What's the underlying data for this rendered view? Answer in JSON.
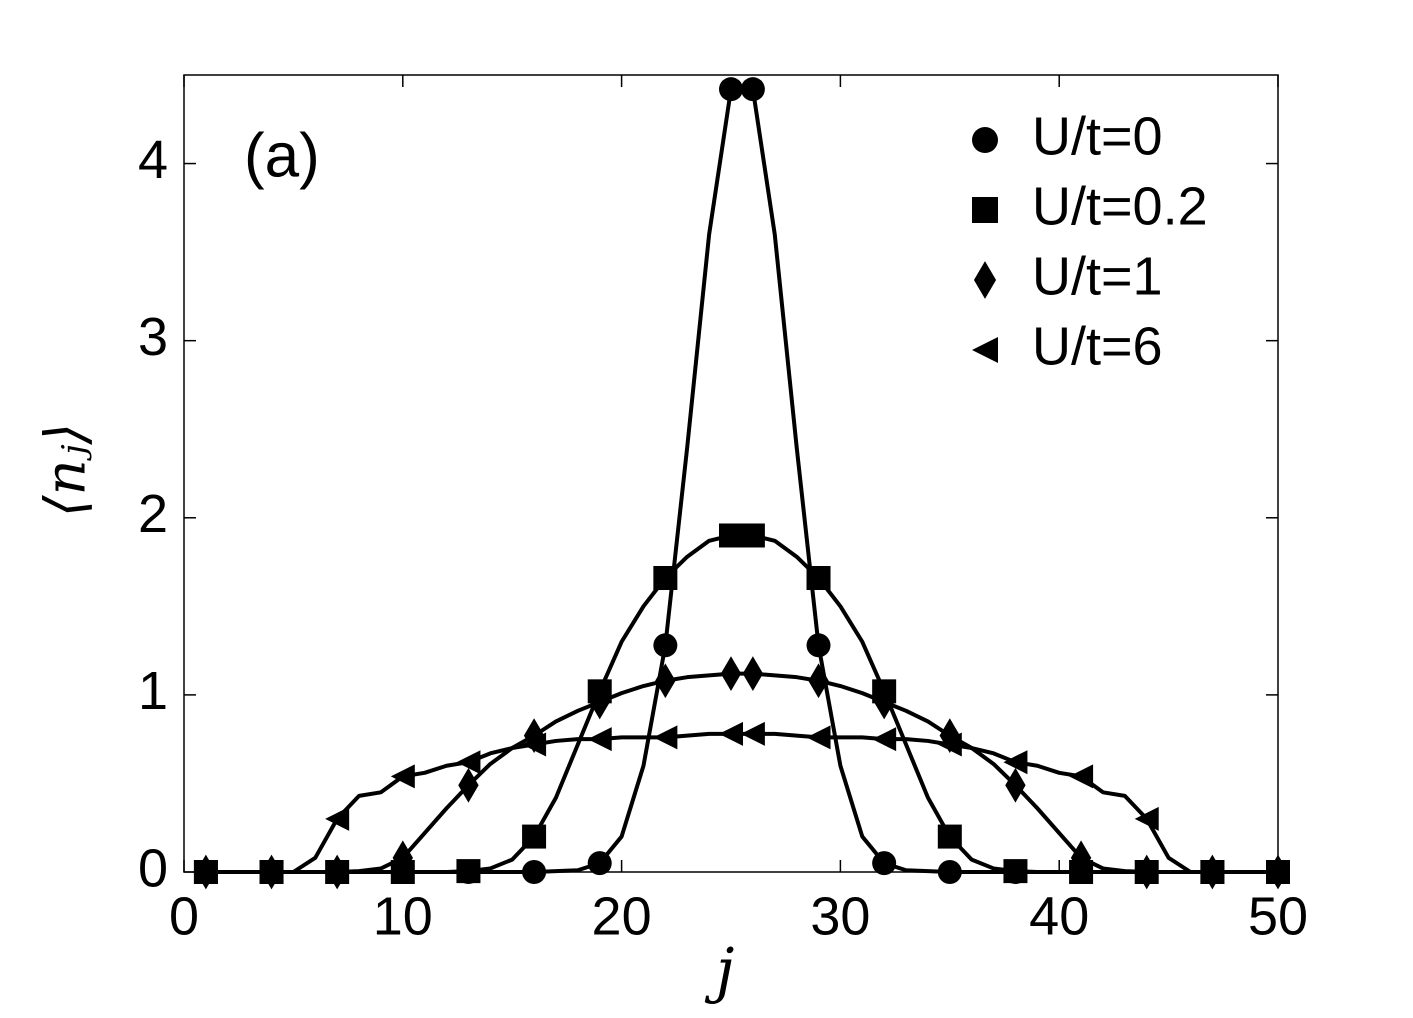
{
  "chart_data": {
    "type": "line",
    "annotation": "(a)",
    "xlabel": "j",
    "ylabel": "⟨nⱼ⟩",
    "xlim": [
      0,
      50
    ],
    "xticks": [
      0,
      10,
      20,
      30,
      40,
      50
    ],
    "ylim": [
      0,
      4.5
    ],
    "yticks": [
      0,
      1,
      2,
      3,
      4
    ],
    "legend": "upper right",
    "x": [
      1,
      2,
      3,
      4,
      5,
      6,
      7,
      8,
      9,
      10,
      11,
      12,
      13,
      14,
      15,
      16,
      17,
      18,
      19,
      20,
      21,
      22,
      23,
      24,
      25,
      26,
      27,
      28,
      29,
      30,
      31,
      32,
      33,
      34,
      35,
      36,
      37,
      38,
      39,
      40,
      41,
      42,
      43,
      44,
      45,
      46,
      47,
      48,
      49,
      50
    ],
    "series": [
      {
        "name": "U/t=0",
        "color": "#000000",
        "marker": "circle",
        "values": [
          0,
          0,
          0,
          0,
          0,
          0,
          0,
          0,
          0,
          0,
          0,
          0,
          0,
          0,
          0,
          0,
          0.005,
          0.01,
          0.05,
          0.2,
          0.6,
          1.28,
          2.4,
          3.6,
          4.42,
          4.42,
          3.6,
          2.4,
          1.28,
          0.6,
          0.2,
          0.05,
          0.01,
          0.005,
          0,
          0,
          0,
          0,
          0,
          0,
          0,
          0,
          0,
          0,
          0,
          0,
          0,
          0,
          0,
          0
        ]
      },
      {
        "name": "U/t=0.2",
        "color": "#000000",
        "marker": "square",
        "values": [
          0,
          0,
          0,
          0,
          0,
          0,
          0,
          0,
          0,
          0,
          0,
          0,
          0.005,
          0.02,
          0.07,
          0.2,
          0.42,
          0.72,
          1.02,
          1.3,
          1.5,
          1.66,
          1.78,
          1.87,
          1.9,
          1.9,
          1.87,
          1.78,
          1.66,
          1.5,
          1.3,
          1.02,
          0.72,
          0.42,
          0.2,
          0.07,
          0.02,
          0.005,
          0,
          0,
          0,
          0,
          0,
          0,
          0,
          0,
          0,
          0,
          0,
          0
        ]
      },
      {
        "name": "U/t=1",
        "color": "#000000",
        "marker": "diamond",
        "values": [
          0,
          0,
          0,
          0,
          0,
          0,
          0,
          0.005,
          0.02,
          0.08,
          0.22,
          0.36,
          0.49,
          0.61,
          0.7,
          0.77,
          0.85,
          0.91,
          0.96,
          1.01,
          1.05,
          1.08,
          1.1,
          1.11,
          1.12,
          1.12,
          1.11,
          1.1,
          1.08,
          1.05,
          1.01,
          0.96,
          0.91,
          0.85,
          0.77,
          0.7,
          0.61,
          0.49,
          0.36,
          0.22,
          0.08,
          0.02,
          0.005,
          0,
          0,
          0,
          0,
          0,
          0,
          0
        ]
      },
      {
        "name": "U/t=6",
        "color": "#000000",
        "marker": "triangle-left",
        "values": [
          0,
          0,
          0,
          0,
          0,
          0.08,
          0.3,
          0.43,
          0.45,
          0.54,
          0.56,
          0.6,
          0.62,
          0.67,
          0.7,
          0.72,
          0.74,
          0.75,
          0.75,
          0.76,
          0.76,
          0.76,
          0.77,
          0.78,
          0.78,
          0.78,
          0.78,
          0.77,
          0.76,
          0.76,
          0.76,
          0.75,
          0.75,
          0.74,
          0.72,
          0.7,
          0.67,
          0.62,
          0.6,
          0.56,
          0.54,
          0.45,
          0.43,
          0.3,
          0.08,
          0,
          0,
          0,
          0,
          0
        ]
      }
    ]
  }
}
